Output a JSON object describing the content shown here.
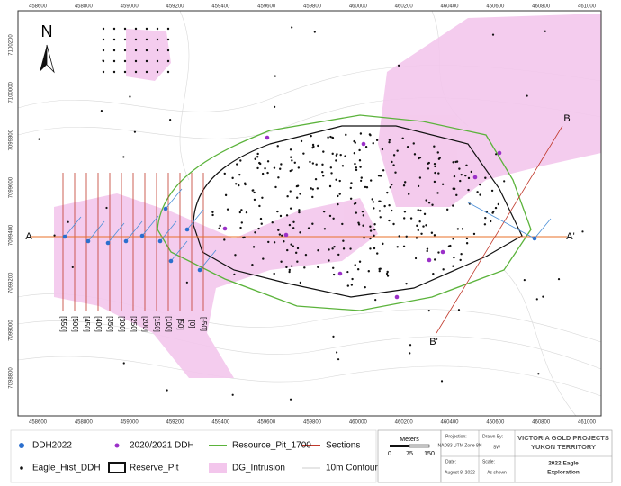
{
  "north": "N",
  "grid": {
    "x_labels": [
      "458600",
      "458800",
      "459000",
      "459200",
      "459400",
      "459600",
      "459800",
      "460000",
      "460200",
      "460400",
      "460600",
      "460800",
      "461000"
    ],
    "y_labels": [
      "7100200",
      "7100000",
      "7099800",
      "7099600",
      "7099400",
      "7099200",
      "7099000",
      "7098800"
    ]
  },
  "sections": {
    "labels": [
      "[550]",
      "[500]",
      "[450]",
      "[400]",
      "[350]",
      "[300]",
      "[250]",
      "[200]",
      "[150]",
      "[100]",
      "[50]",
      "[0]",
      "[-50]"
    ],
    "points": [
      "A",
      "A'",
      "B",
      "B'"
    ]
  },
  "legend": [
    "DDH2022",
    "2020/2021 DDH",
    "Resource_Pit_1700",
    "Sections",
    "Eagle_Hist_DDH",
    "Reserve_Pit",
    "DG_Intrusion",
    "10m Contours"
  ],
  "scale": {
    "title": "Meters",
    "ticks": [
      "0",
      "75",
      "150"
    ]
  },
  "title_block": {
    "projection_label": "Projection:",
    "projection": "NAD83 UTM Zone 8N",
    "drawn_label": "Drawn By:",
    "drawn": "SW",
    "date_label": "Date:",
    "date": "August 8, 2022",
    "scale_label": "Scale:",
    "scale": "As shown",
    "company": "VICTORIA GOLD PROJECTS",
    "region": "YUKON TERRITORY",
    "project": "2022 Eagle",
    "project2": "Exploration"
  }
}
